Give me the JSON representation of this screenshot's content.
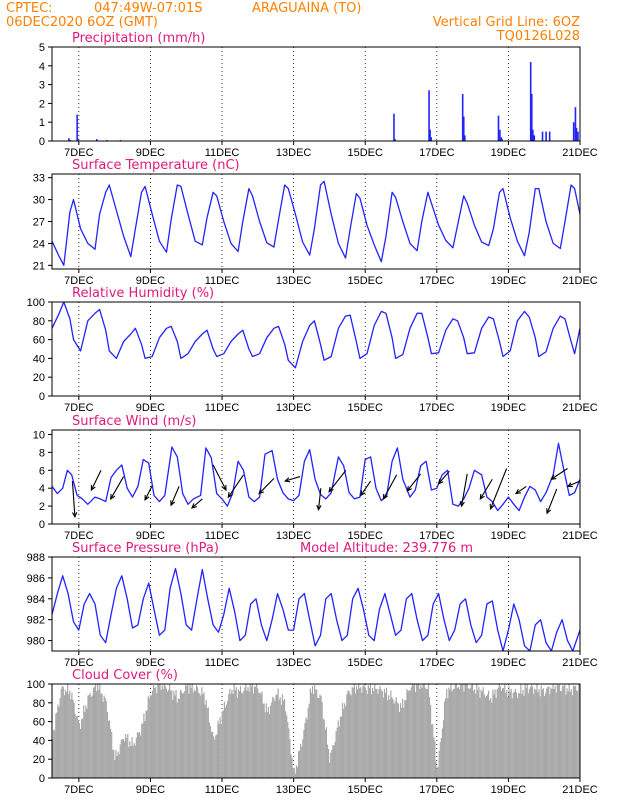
{
  "header": {
    "source": "CPTEC:",
    "coords": "047:49W-07:01S",
    "location": "ARAGUAINA (TO)",
    "run": "06DEC2020 6OZ (GMT)",
    "vgrid": "Vertical Grid Line: 6OZ",
    "code": "TQ0126L028"
  },
  "colors": {
    "header": "#ff8000",
    "title": "#e0197d",
    "line": "#2323ff",
    "cloud": "#a9a9a9",
    "wind": "#000000"
  },
  "xaxis": {
    "ticks": [
      {
        "day": 7,
        "label": "7DEC"
      },
      {
        "day": 9,
        "label": "9DEC"
      },
      {
        "day": 11,
        "label": "11DEC"
      },
      {
        "day": 13,
        "label": "13DEC"
      },
      {
        "day": 15,
        "label": "15DEC"
      },
      {
        "day": 17,
        "label": "17DEC"
      },
      {
        "day": 19,
        "label": "19DEC"
      },
      {
        "day": 21,
        "label": "21DEC"
      }
    ],
    "start_day": 6.25,
    "end_day": 21.0
  },
  "chart_data": [
    {
      "type": "bar",
      "title": "Precipitation (mm/h)",
      "ylim": [
        0,
        5
      ],
      "yticks": [
        0,
        1,
        2,
        3,
        4,
        5
      ],
      "x": [
        6.72,
        6.76,
        6.95,
        6.97,
        7.5,
        7.78,
        8.16,
        15.8,
        15.83,
        16.78,
        16.81,
        16.84,
        17.72,
        17.75,
        17.78,
        18.72,
        18.76,
        18.8,
        18.82,
        19.62,
        19.65,
        19.68,
        19.72,
        19.95,
        20.05,
        20.15,
        20.82,
        20.87,
        20.9,
        20.94
      ],
      "values": [
        0.15,
        0.05,
        1.4,
        0.1,
        0.1,
        0.05,
        0.05,
        1.45,
        0.1,
        2.7,
        0.6,
        0.2,
        2.5,
        1.3,
        0.3,
        1.35,
        0.6,
        0.2,
        0.1,
        4.2,
        2.5,
        0.6,
        0.3,
        0.5,
        0.5,
        0.5,
        1.0,
        1.8,
        0.7,
        0.5
      ]
    },
    {
      "type": "line",
      "title": "Surface Temperature (nC)",
      "ylim": [
        20.5,
        33.5
      ],
      "yticks": [
        21,
        24,
        27,
        30,
        33
      ],
      "x": [
        6.25,
        6.45,
        6.58,
        6.75,
        6.85,
        7.05,
        7.25,
        7.45,
        7.58,
        7.75,
        7.85,
        8.05,
        8.25,
        8.45,
        8.58,
        8.75,
        8.85,
        9.05,
        9.25,
        9.45,
        9.58,
        9.75,
        9.85,
        10.05,
        10.25,
        10.45,
        10.58,
        10.75,
        10.85,
        11.05,
        11.25,
        11.45,
        11.58,
        11.75,
        11.85,
        12.05,
        12.25,
        12.45,
        12.58,
        12.75,
        12.85,
        13.05,
        13.25,
        13.45,
        13.58,
        13.75,
        13.85,
        14.05,
        14.25,
        14.45,
        14.58,
        14.75,
        14.85,
        15.05,
        15.25,
        15.45,
        15.58,
        15.75,
        15.85,
        16.05,
        16.25,
        16.45,
        16.58,
        16.75,
        16.85,
        17.05,
        17.25,
        17.45,
        17.58,
        17.75,
        17.85,
        18.05,
        18.25,
        18.45,
        18.58,
        18.75,
        18.85,
        19.05,
        19.25,
        19.45,
        19.58,
        19.75,
        19.85,
        20.05,
        20.25,
        20.45,
        20.58,
        20.75,
        20.85,
        21.0
      ],
      "values": [
        24.3,
        22.2,
        21.0,
        28.3,
        30.0,
        26.0,
        24.0,
        23.2,
        28.0,
        31.0,
        32.0,
        28.5,
        25.0,
        22.2,
        26.0,
        31.0,
        31.8,
        28.0,
        24.3,
        22.8,
        27.3,
        32.0,
        31.8,
        28.0,
        24.3,
        23.8,
        27.5,
        31.0,
        30.5,
        27.0,
        24.0,
        22.9,
        27.0,
        31.5,
        30.5,
        27.0,
        24.1,
        23.5,
        27.3,
        32.0,
        31.5,
        28.0,
        24.2,
        22.4,
        26.0,
        32.0,
        32.5,
        28.0,
        24.0,
        22.0,
        26.0,
        30.8,
        30.2,
        26.5,
        23.8,
        21.5,
        25.0,
        31.0,
        30.3,
        27.0,
        24.0,
        23.0,
        27.0,
        31.0,
        29.5,
        26.5,
        24.4,
        23.4,
        26.5,
        30.5,
        29.5,
        26.5,
        24.2,
        23.7,
        26.0,
        31.0,
        31.5,
        27.5,
        24.3,
        22.3,
        25.5,
        31.5,
        31.5,
        27.0,
        24.0,
        23.3,
        27.0,
        32.0,
        31.5,
        28.0
      ]
    },
    {
      "type": "line",
      "title": "Relative Humidity (%)",
      "ylim": [
        0,
        100
      ],
      "yticks": [
        0,
        20,
        40,
        60,
        80,
        100
      ],
      "x": [
        6.25,
        6.45,
        6.58,
        6.75,
        6.85,
        7.05,
        7.25,
        7.45,
        7.58,
        7.75,
        7.85,
        8.05,
        8.25,
        8.45,
        8.58,
        8.75,
        8.85,
        9.05,
        9.25,
        9.45,
        9.58,
        9.75,
        9.85,
        10.05,
        10.25,
        10.45,
        10.58,
        10.75,
        10.85,
        11.05,
        11.25,
        11.45,
        11.58,
        11.75,
        11.85,
        12.05,
        12.25,
        12.45,
        12.58,
        12.75,
        12.85,
        13.05,
        13.25,
        13.45,
        13.58,
        13.75,
        13.85,
        14.05,
        14.25,
        14.45,
        14.58,
        14.75,
        14.85,
        15.05,
        15.25,
        15.45,
        15.58,
        15.75,
        15.85,
        16.05,
        16.25,
        16.45,
        16.58,
        16.75,
        16.85,
        17.05,
        17.25,
        17.45,
        17.58,
        17.75,
        17.85,
        18.05,
        18.25,
        18.45,
        18.58,
        18.75,
        18.85,
        19.05,
        19.25,
        19.45,
        19.58,
        19.75,
        19.85,
        20.05,
        20.25,
        20.45,
        20.58,
        20.75,
        20.85,
        21.0
      ],
      "values": [
        72,
        88,
        100,
        82,
        60,
        48,
        80,
        88,
        92,
        70,
        48,
        40,
        58,
        66,
        72,
        55,
        40,
        42,
        62,
        72,
        74,
        58,
        40,
        45,
        58,
        66,
        70,
        50,
        42,
        45,
        58,
        66,
        70,
        50,
        42,
        45,
        62,
        72,
        74,
        55,
        38,
        30,
        58,
        75,
        80,
        55,
        38,
        42,
        72,
        85,
        86,
        58,
        40,
        45,
        75,
        90,
        88,
        62,
        40,
        44,
        72,
        88,
        88,
        62,
        45,
        46,
        70,
        82,
        80,
        62,
        45,
        46,
        72,
        84,
        82,
        58,
        42,
        48,
        80,
        90,
        84,
        62,
        42,
        47,
        72,
        85,
        82,
        58,
        45,
        72
      ]
    },
    {
      "type": "line",
      "title": "Surface Wind (m/s)",
      "ylim": [
        0,
        10.5
      ],
      "yticks": [
        0,
        2,
        4,
        6,
        8,
        10
      ],
      "x": [
        6.25,
        6.4,
        6.55,
        6.68,
        6.8,
        6.95,
        7.1,
        7.25,
        7.45,
        7.6,
        7.75,
        7.9,
        8.05,
        8.2,
        8.35,
        8.5,
        8.65,
        8.8,
        8.95,
        9.1,
        9.25,
        9.4,
        9.6,
        9.75,
        9.9,
        10.05,
        10.2,
        10.4,
        10.55,
        10.7,
        10.85,
        11.0,
        11.15,
        11.3,
        11.45,
        11.6,
        11.75,
        11.9,
        12.05,
        12.2,
        12.4,
        12.55,
        12.7,
        12.85,
        13.0,
        13.15,
        13.3,
        13.45,
        13.6,
        13.75,
        13.9,
        14.05,
        14.25,
        14.4,
        14.55,
        14.7,
        14.85,
        15.0,
        15.15,
        15.3,
        15.45,
        15.6,
        15.75,
        15.9,
        16.05,
        16.25,
        16.4,
        16.55,
        16.7,
        16.85,
        17.0,
        17.15,
        17.3,
        17.45,
        17.6,
        17.75,
        17.9,
        18.05,
        18.25,
        18.4,
        18.55,
        18.7,
        18.85,
        19.0,
        19.15,
        19.3,
        19.45,
        19.6,
        19.75,
        19.9,
        20.05,
        20.25,
        20.4,
        20.55,
        20.7,
        20.85,
        21.0
      ],
      "values": [
        4.2,
        3.4,
        4.0,
        6.0,
        5.5,
        3.2,
        2.8,
        2.2,
        3.0,
        2.8,
        2.5,
        5.2,
        6.0,
        6.6,
        4.0,
        3.0,
        4.2,
        7.2,
        6.8,
        3.2,
        2.5,
        3.2,
        8.6,
        7.5,
        3.4,
        2.2,
        2.8,
        3.2,
        8.5,
        7.4,
        3.4,
        2.8,
        2.0,
        3.5,
        7.0,
        6.0,
        3.0,
        2.5,
        3.0,
        7.8,
        8.2,
        5.0,
        3.5,
        2.8,
        2.6,
        3.2,
        7.0,
        8.3,
        5.0,
        3.3,
        2.8,
        3.5,
        7.5,
        6.5,
        3.5,
        2.8,
        3.0,
        7.2,
        7.5,
        4.0,
        2.6,
        3.2,
        7.0,
        8.5,
        5.0,
        3.0,
        3.8,
        6.5,
        7.0,
        3.8,
        4.0,
        5.5,
        6.0,
        2.2,
        2.0,
        2.8,
        4.0,
        6.0,
        5.5,
        3.0,
        2.5,
        1.5,
        2.2,
        3.0,
        2.2,
        1.5,
        3.0,
        4.2,
        3.8,
        2.5,
        3.5,
        5.5,
        9.0,
        6.0,
        3.2,
        3.5,
        5.0
      ],
      "vectors": [
        {
          "x": 6.82,
          "y": 4.8,
          "dx": 0.14,
          "dy": -4.0
        },
        {
          "x": 7.62,
          "y": 6.0,
          "dx": -0.54,
          "dy": -2.2
        },
        {
          "x": 8.25,
          "y": 5.3,
          "dx": -0.72,
          "dy": -2.5
        },
        {
          "x": 9.05,
          "y": 4.3,
          "dx": -0.4,
          "dy": -1.6
        },
        {
          "x": 9.8,
          "y": 4.2,
          "dx": -0.45,
          "dy": -2.1
        },
        {
          "x": 10.45,
          "y": 2.8,
          "dx": -0.58,
          "dy": -1.0
        },
        {
          "x": 10.75,
          "y": 6.6,
          "dx": 0.72,
          "dy": -2.8
        },
        {
          "x": 11.6,
          "y": 5.5,
          "dx": -0.85,
          "dy": -2.5
        },
        {
          "x": 12.45,
          "y": 5.1,
          "dx": -0.83,
          "dy": -1.7
        },
        {
          "x": 13.18,
          "y": 5.3,
          "dx": -0.83,
          "dy": -0.5
        },
        {
          "x": 13.76,
          "y": 4.0,
          "dx": -0.13,
          "dy": -2.4
        },
        {
          "x": 14.46,
          "y": 6.0,
          "dx": -0.94,
          "dy": -2.4
        },
        {
          "x": 15.15,
          "y": 4.8,
          "dx": -0.54,
          "dy": -1.6
        },
        {
          "x": 15.88,
          "y": 5.5,
          "dx": -0.74,
          "dy": -2.7
        },
        {
          "x": 16.55,
          "y": 5.6,
          "dx": -0.75,
          "dy": -1.9
        },
        {
          "x": 17.35,
          "y": 5.9,
          "dx": -0.6,
          "dy": -1.4
        },
        {
          "x": 17.85,
          "y": 5.6,
          "dx": -0.32,
          "dy": -3.6
        },
        {
          "x": 18.55,
          "y": 5.0,
          "dx": -0.67,
          "dy": -2.2
        },
        {
          "x": 18.95,
          "y": 6.2,
          "dx": -0.9,
          "dy": -4.5
        },
        {
          "x": 19.5,
          "y": 4.2,
          "dx": -0.58,
          "dy": -0.8
        },
        {
          "x": 20.35,
          "y": 3.9,
          "dx": -0.54,
          "dy": -2.7
        },
        {
          "x": 20.65,
          "y": 6.2,
          "dx": -0.9,
          "dy": -1.2
        },
        {
          "x": 21.0,
          "y": 4.8,
          "dx": -0.68,
          "dy": -0.6
        }
      ]
    },
    {
      "type": "line",
      "title": "Surface Pressure (hPa)",
      "annotation": "Model Altitude: 239.776 m",
      "ylim": [
        979,
        988
      ],
      "yticks": [
        980,
        982,
        984,
        986,
        988
      ],
      "x": [
        6.25,
        6.4,
        6.55,
        6.7,
        6.85,
        7.0,
        7.15,
        7.3,
        7.45,
        7.6,
        7.75,
        7.9,
        8.05,
        8.2,
        8.35,
        8.5,
        8.65,
        8.8,
        8.95,
        9.1,
        9.25,
        9.4,
        9.55,
        9.7,
        9.85,
        10.0,
        10.15,
        10.3,
        10.45,
        10.6,
        10.75,
        10.9,
        11.05,
        11.2,
        11.35,
        11.5,
        11.65,
        11.8,
        11.95,
        12.1,
        12.25,
        12.4,
        12.55,
        12.7,
        12.85,
        13.0,
        13.15,
        13.3,
        13.45,
        13.6,
        13.75,
        13.9,
        14.05,
        14.2,
        14.35,
        14.5,
        14.65,
        14.8,
        14.95,
        15.1,
        15.25,
        15.4,
        15.55,
        15.7,
        15.85,
        16.0,
        16.15,
        16.3,
        16.45,
        16.6,
        16.75,
        16.9,
        17.05,
        17.2,
        17.35,
        17.5,
        17.65,
        17.8,
        17.95,
        18.1,
        18.25,
        18.4,
        18.55,
        18.7,
        18.85,
        19.0,
        19.15,
        19.3,
        19.45,
        19.6,
        19.75,
        19.9,
        20.05,
        20.2,
        20.35,
        20.5,
        20.65,
        20.8,
        21.0
      ],
      "values": [
        982.5,
        984.5,
        986.2,
        984.5,
        981.8,
        981.0,
        983.5,
        984.5,
        983.5,
        980.5,
        979.8,
        982.5,
        985.0,
        986.2,
        984.0,
        981.2,
        981.5,
        984.0,
        985.5,
        983.0,
        980.5,
        981.0,
        985.0,
        986.9,
        984.5,
        981.5,
        981.0,
        984.0,
        986.8,
        984.0,
        981.5,
        980.8,
        982.5,
        985.0,
        982.8,
        980.0,
        980.5,
        983.5,
        984.0,
        981.5,
        980.0,
        982.0,
        984.5,
        983.0,
        981.0,
        981.0,
        984.0,
        984.5,
        982.0,
        979.5,
        980.5,
        984.0,
        984.5,
        982.0,
        980.0,
        980.5,
        984.0,
        985.0,
        983.0,
        980.5,
        980.0,
        983.0,
        984.5,
        982.5,
        980.5,
        981.0,
        984.0,
        984.5,
        982.0,
        980.0,
        980.5,
        983.5,
        984.5,
        982.0,
        980.0,
        981.0,
        983.5,
        984.0,
        981.5,
        979.8,
        980.5,
        983.5,
        983.8,
        981.0,
        979.0,
        981.0,
        983.5,
        982.0,
        979.5,
        979.0,
        981.5,
        982.0,
        979.8,
        979.0,
        980.8,
        982.0,
        980.0,
        979.0,
        981.0
      ]
    },
    {
      "type": "bar",
      "title": "Cloud Cover (%)",
      "ylim": [
        0,
        100
      ],
      "yticks": [
        0,
        20,
        40,
        60,
        80,
        100
      ],
      "x": [
        6.25,
        6.5,
        6.75,
        7.0,
        7.25,
        7.5,
        7.75,
        8.0,
        8.25,
        8.5,
        8.75,
        9.0,
        9.25,
        9.5,
        9.75,
        10.0,
        10.25,
        10.5,
        10.75,
        11.0,
        11.25,
        11.5,
        11.75,
        12.0,
        12.25,
        12.5,
        12.75,
        13.0,
        13.25,
        13.5,
        13.75,
        14.0,
        14.25,
        14.5,
        14.75,
        15.0,
        15.25,
        15.5,
        15.75,
        16.0,
        16.25,
        16.5,
        16.75,
        17.0,
        17.25,
        17.5,
        17.75,
        18.0,
        18.25,
        18.5,
        18.75,
        19.0,
        19.25,
        19.5,
        19.75,
        20.0,
        20.25,
        20.5,
        20.75,
        21.0
      ],
      "values": [
        45,
        95,
        92,
        55,
        85,
        100,
        80,
        20,
        45,
        35,
        55,
        92,
        100,
        95,
        85,
        98,
        95,
        88,
        40,
        70,
        95,
        92,
        98,
        96,
        70,
        90,
        80,
        3,
        45,
        98,
        85,
        20,
        60,
        90,
        98,
        95,
        96,
        92,
        85,
        75,
        98,
        100,
        97,
        8,
        92,
        98,
        100,
        96,
        92,
        85,
        98,
        92,
        90,
        96,
        95,
        92,
        98,
        96,
        94,
        98
      ]
    }
  ],
  "panel_meta": [
    {
      "key": "precip",
      "name": "precipitation-panel",
      "top": 47,
      "bottom": 141
    },
    {
      "key": "temp",
      "name": "temperature-panel",
      "top": 174,
      "bottom": 269
    },
    {
      "key": "rh",
      "name": "humidity-panel",
      "top": 302,
      "bottom": 396
    },
    {
      "key": "wind",
      "name": "wind-panel",
      "top": 430,
      "bottom": 524
    },
    {
      "key": "pres",
      "name": "pressure-panel",
      "top": 557,
      "bottom": 651
    },
    {
      "key": "cloud",
      "name": "cloud-panel",
      "top": 684,
      "bottom": 778
    }
  ]
}
